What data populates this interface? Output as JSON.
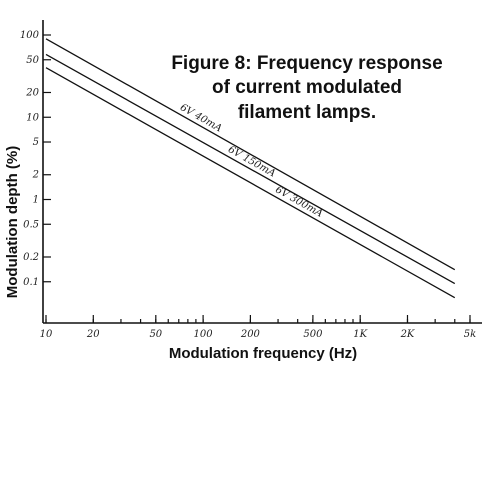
{
  "chart_data": {
    "type": "line",
    "title_lines": [
      "Figure 8: Frequency response",
      "of current modulated",
      "filament lamps."
    ],
    "xlabel": "Modulation frequency (Hz)",
    "ylabel": "Modulation depth (%)",
    "x_scale": "log",
    "y_scale": "log",
    "xlim": [
      10,
      5000
    ],
    "ylim": [
      0.06,
      100
    ],
    "grid": false,
    "x_ticks": [
      {
        "value": 10,
        "label": "10"
      },
      {
        "value": 20,
        "label": "20"
      },
      {
        "value": 50,
        "label": "50"
      },
      {
        "value": 100,
        "label": "100"
      },
      {
        "value": 200,
        "label": "200"
      },
      {
        "value": 500,
        "label": "500"
      },
      {
        "value": 1000,
        "label": "1K"
      },
      {
        "value": 2000,
        "label": "2K"
      },
      {
        "value": 5000,
        "label": "5k"
      }
    ],
    "y_ticks": [
      {
        "value": 100,
        "label": "100"
      },
      {
        "value": 50,
        "label": "50"
      },
      {
        "value": 20,
        "label": "20"
      },
      {
        "value": 10,
        "label": "10"
      },
      {
        "value": 5,
        "label": "5"
      },
      {
        "value": 2,
        "label": "2"
      },
      {
        "value": 1,
        "label": "1"
      },
      {
        "value": 0.5,
        "label": "0.5"
      },
      {
        "value": 0.2,
        "label": "0.2"
      },
      {
        "value": 0.1,
        "label": "0.1"
      }
    ],
    "series": [
      {
        "name": "6V 40mA",
        "x": [
          10,
          4000
        ],
        "y": [
          90,
          0.14
        ]
      },
      {
        "name": "6V 150mA",
        "x": [
          10,
          4000
        ],
        "y": [
          58,
          0.095
        ]
      },
      {
        "name": "6V 300mA",
        "x": [
          10,
          4000
        ],
        "y": [
          40,
          0.064
        ]
      }
    ]
  }
}
